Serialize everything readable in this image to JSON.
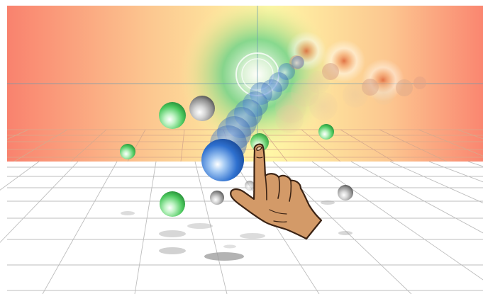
{
  "scene": {
    "description_colors": {
      "backdrop_left": "#f9856f",
      "backdrop_center": "#fff8a8",
      "backdrop_right": "#fb8a74",
      "focus_glow": "#7fd89a",
      "trail_blue": "#3a7fd8",
      "ghost_orange": "#e06a3a",
      "floor_line": "#b9b9b9",
      "skin": "#d39a68"
    },
    "icons": {
      "pointer": "hand-pointer-icon"
    }
  }
}
